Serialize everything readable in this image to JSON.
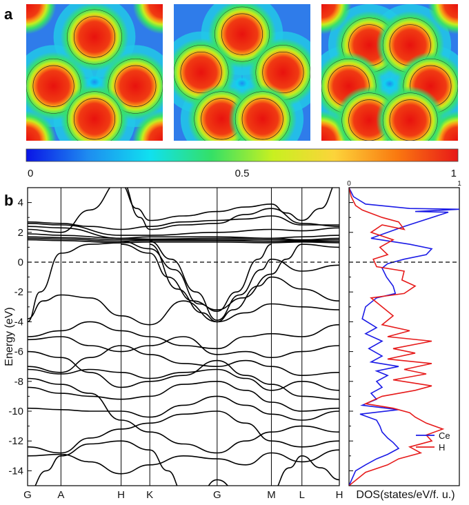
{
  "panel_a_label": "a",
  "panel_b_label": "b",
  "colorbar": {
    "ticks": [
      {
        "value": 0,
        "label": "0"
      },
      {
        "value": 0.5,
        "label": "0.5"
      },
      {
        "value": 1,
        "label": "1"
      }
    ],
    "range": [
      0,
      1
    ],
    "colors": [
      "#0a14e6",
      "#1e8cf0",
      "#10e0f0",
      "#34e066",
      "#c8f020",
      "#fcd43a",
      "#fa7a10",
      "#e81818"
    ]
  },
  "chart_data": [
    {
      "type": "heatmap",
      "description_ref": "electron localization function maps",
      "maps": [
        {
          "blobs": [
            [
              0.5,
              0.24
            ],
            [
              0.2,
              0.6
            ],
            [
              0.8,
              0.6
            ],
            [
              0.5,
              0.84
            ]
          ],
          "corners": true
        },
        {
          "blobs": [
            [
              0.5,
              0.22
            ],
            [
              0.2,
              0.5
            ],
            [
              0.8,
              0.5
            ],
            [
              0.35,
              0.84
            ],
            [
              0.65,
              0.84
            ]
          ],
          "corners": false
        },
        {
          "blobs": [
            [
              0.35,
              0.3
            ],
            [
              0.65,
              0.3
            ],
            [
              0.2,
              0.6
            ],
            [
              0.8,
              0.6
            ],
            [
              0.35,
              0.85
            ],
            [
              0.65,
              0.85
            ]
          ],
          "corners": true
        }
      ]
    },
    {
      "type": "line",
      "ylabel": "Energy (eV)",
      "ylim": [
        -15,
        5
      ],
      "yticks": [
        4,
        2,
        0,
        -2,
        -4,
        -6,
        -8,
        -10,
        -12,
        -14
      ],
      "kpath": [
        {
          "label": "G",
          "x": 0
        },
        {
          "label": "A",
          "x": 0.107
        },
        {
          "label": "H",
          "x": 0.3
        },
        {
          "label": "K",
          "x": 0.392
        },
        {
          "label": "G",
          "x": 0.608
        },
        {
          "label": "M",
          "x": 0.782
        },
        {
          "label": "L",
          "x": 0.88
        },
        {
          "label": "H",
          "x": 1
        }
      ],
      "fermi_level": 0
    },
    {
      "type": "line",
      "xlabel": "DOS(states/eV/f. u.)",
      "xlim": [
        0,
        1
      ],
      "xticks": [
        {
          "value": 0,
          "label": "0"
        },
        {
          "value": 1,
          "label": "1"
        }
      ],
      "ylim": [
        -15,
        5
      ],
      "series": [
        {
          "name": "Ce",
          "color": "#1a1ae6",
          "points": [
            [
              0.0,
              5
            ],
            [
              0.04,
              4.4
            ],
            [
              0.15,
              3.9
            ],
            [
              0.55,
              3.6
            ],
            [
              1.0,
              3.55
            ],
            [
              0.6,
              3.4
            ],
            [
              0.9,
              3.35
            ],
            [
              0.5,
              2.4
            ],
            [
              0.2,
              1.6
            ],
            [
              0.55,
              1.2
            ],
            [
              0.75,
              0.9
            ],
            [
              0.7,
              0.5
            ],
            [
              0.5,
              0.2
            ],
            [
              0.35,
              -0.1
            ],
            [
              0.3,
              -0.4
            ],
            [
              0.34,
              -1.0
            ],
            [
              0.4,
              -1.6
            ],
            [
              0.42,
              -2.1
            ],
            [
              0.25,
              -2.4
            ],
            [
              0.15,
              -3.0
            ],
            [
              0.12,
              -3.8
            ],
            [
              0.25,
              -4.4
            ],
            [
              0.15,
              -4.8
            ],
            [
              0.3,
              -5.3
            ],
            [
              0.18,
              -5.8
            ],
            [
              0.3,
              -6.3
            ],
            [
              0.2,
              -6.7
            ],
            [
              0.45,
              -7.0
            ],
            [
              0.25,
              -7.3
            ],
            [
              0.35,
              -7.6
            ],
            [
              0.25,
              -8.0
            ],
            [
              0.3,
              -8.4
            ],
            [
              0.2,
              -8.8
            ],
            [
              0.25,
              -9.2
            ],
            [
              0.12,
              -9.6
            ],
            [
              0.45,
              -9.9
            ],
            [
              0.1,
              -10.2
            ],
            [
              0.25,
              -10.6
            ],
            [
              0.28,
              -11.0
            ],
            [
              0.3,
              -11.4
            ],
            [
              0.35,
              -11.8
            ],
            [
              0.4,
              -12.1
            ],
            [
              0.45,
              -12.5
            ],
            [
              0.35,
              -12.9
            ],
            [
              0.25,
              -13.2
            ],
            [
              0.15,
              -13.6
            ],
            [
              0.06,
              -14.0
            ],
            [
              0.0,
              -15
            ]
          ]
        },
        {
          "name": "H",
          "color": "#e61a1a",
          "points": [
            [
              0.0,
              5
            ],
            [
              0.02,
              4.4
            ],
            [
              0.06,
              3.8
            ],
            [
              0.12,
              3.5
            ],
            [
              0.3,
              3.0
            ],
            [
              0.45,
              2.7
            ],
            [
              0.5,
              2.2
            ],
            [
              0.3,
              2.5
            ],
            [
              0.2,
              2.0
            ],
            [
              0.4,
              1.5
            ],
            [
              0.28,
              1.0
            ],
            [
              0.35,
              0.5
            ],
            [
              0.22,
              0.2
            ],
            [
              0.25,
              -0.3
            ],
            [
              0.5,
              -0.6
            ],
            [
              0.48,
              -1.2
            ],
            [
              0.6,
              -1.6
            ],
            [
              0.5,
              -2.1
            ],
            [
              0.2,
              -2.4
            ],
            [
              0.3,
              -3.0
            ],
            [
              0.4,
              -3.6
            ],
            [
              0.3,
              -4.2
            ],
            [
              0.55,
              -4.6
            ],
            [
              0.35,
              -5.0
            ],
            [
              0.75,
              -5.3
            ],
            [
              0.4,
              -5.8
            ],
            [
              0.6,
              -6.1
            ],
            [
              0.35,
              -6.5
            ],
            [
              0.75,
              -6.8
            ],
            [
              0.5,
              -7.2
            ],
            [
              0.7,
              -7.5
            ],
            [
              0.4,
              -7.9
            ],
            [
              0.75,
              -8.3
            ],
            [
              0.6,
              -8.6
            ],
            [
              0.3,
              -9.0
            ],
            [
              0.15,
              -9.5
            ],
            [
              0.4,
              -9.8
            ],
            [
              0.55,
              -10.1
            ],
            [
              0.6,
              -10.4
            ],
            [
              0.7,
              -10.8
            ],
            [
              0.85,
              -11.2
            ],
            [
              0.7,
              -11.6
            ],
            [
              0.75,
              -12.0
            ],
            [
              0.55,
              -12.4
            ],
            [
              0.65,
              -12.8
            ],
            [
              0.45,
              -13.2
            ],
            [
              0.35,
              -13.6
            ],
            [
              0.15,
              -14.1
            ],
            [
              0.0,
              -15
            ]
          ]
        }
      ]
    }
  ]
}
